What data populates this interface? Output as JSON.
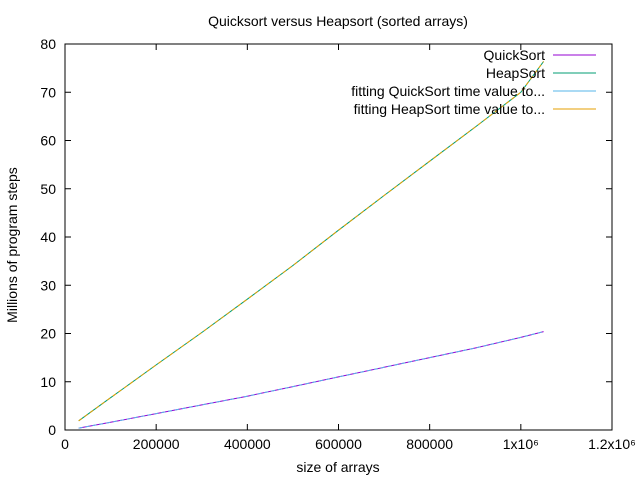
{
  "chart_data": {
    "type": "line",
    "title": "Quicksort versus Heapsort (sorted arrays)",
    "xlabel": "size of arrays",
    "ylabel": "Millions of program steps",
    "xlim": [
      0,
      1200000
    ],
    "ylim": [
      0,
      80
    ],
    "x_ticks": [
      {
        "value": 0,
        "label": "0"
      },
      {
        "value": 200000,
        "label": "200000"
      },
      {
        "value": 400000,
        "label": "400000"
      },
      {
        "value": 600000,
        "label": "600000"
      },
      {
        "value": 800000,
        "label": "800000"
      },
      {
        "value": 1000000,
        "label": "1x10⁶"
      },
      {
        "value": 1200000,
        "label": "1.2x10⁶"
      }
    ],
    "y_ticks": [
      {
        "value": 0,
        "label": "0"
      },
      {
        "value": 10,
        "label": "10"
      },
      {
        "value": 20,
        "label": "20"
      },
      {
        "value": 30,
        "label": "30"
      },
      {
        "value": 40,
        "label": "40"
      },
      {
        "value": 50,
        "label": "50"
      },
      {
        "value": 60,
        "label": "60"
      },
      {
        "value": 70,
        "label": "70"
      },
      {
        "value": 80,
        "label": "80"
      }
    ],
    "grid": false,
    "legend_position": "top-right",
    "series": [
      {
        "name": "QuickSort",
        "color": "#9400d3",
        "x": [
          30000,
          100000,
          200000,
          300000,
          400000,
          500000,
          600000,
          700000,
          800000,
          900000,
          1000000,
          1050000
        ],
        "y": [
          0.4,
          1.6,
          3.4,
          5.2,
          7.0,
          9.0,
          11.0,
          13.0,
          15.0,
          17.0,
          19.2,
          20.4
        ]
      },
      {
        "name": "HeapSort",
        "color": "#009e73",
        "x": [
          30000,
          100000,
          200000,
          300000,
          400000,
          500000,
          600000,
          700000,
          800000,
          900000,
          1000000,
          1050000
        ],
        "y": [
          1.9,
          6.7,
          13.5,
          20.2,
          27.1,
          34.1,
          41.4,
          48.6,
          55.7,
          62.8,
          70.0,
          76.4
        ]
      },
      {
        "name": "fitting QuickSort time value to...",
        "color": "#56b4e9",
        "x": [
          30000,
          100000,
          200000,
          300000,
          400000,
          500000,
          600000,
          700000,
          800000,
          900000,
          1000000,
          1050000
        ],
        "y": [
          0.4,
          1.6,
          3.4,
          5.2,
          7.0,
          9.0,
          11.0,
          13.0,
          15.0,
          17.0,
          19.2,
          20.4
        ]
      },
      {
        "name": "fitting HeapSort time value to...",
        "color": "#e69f00",
        "x": [
          30000,
          100000,
          200000,
          300000,
          400000,
          500000,
          600000,
          700000,
          800000,
          900000,
          1000000,
          1050000
        ],
        "y": [
          1.9,
          6.7,
          13.5,
          20.2,
          27.1,
          34.1,
          41.4,
          48.6,
          55.7,
          62.8,
          70.0,
          76.4
        ]
      }
    ]
  }
}
